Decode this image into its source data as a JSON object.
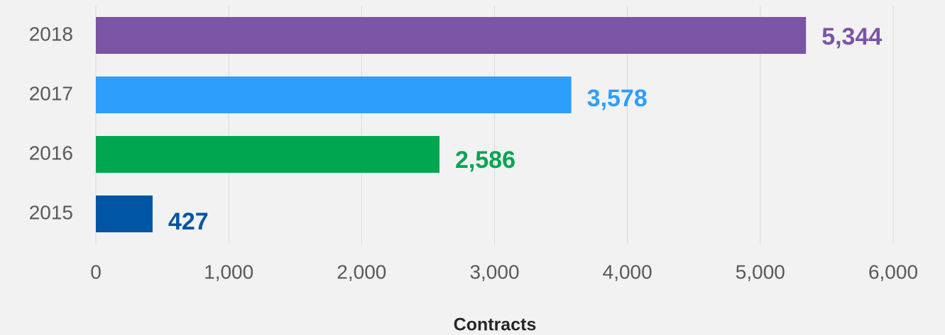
{
  "chart_data": {
    "type": "bar",
    "orientation": "horizontal",
    "x_label": "Contracts",
    "categories": [
      "2018",
      "2017",
      "2016",
      "2015"
    ],
    "values": [
      5344,
      3578,
      2586,
      427
    ],
    "value_labels": [
      "5,344",
      "3,578",
      "2,586",
      "427"
    ],
    "colors": [
      "#7a54a5",
      "#2e9efc",
      "#00a650",
      "#0055a4"
    ],
    "xlim": [
      0,
      6000
    ],
    "xticks": [
      0,
      {
        "value": 1000,
        "label": "1,000"
      },
      {
        "value": 2000,
        "label": "2,000"
      },
      {
        "value": 3000,
        "label": "3,000"
      },
      {
        "value": 4000,
        "label": "4,000"
      },
      {
        "value": 5000,
        "label": "5,000"
      },
      {
        "value": 6000,
        "label": "6,000"
      }
    ],
    "grid": true
  }
}
